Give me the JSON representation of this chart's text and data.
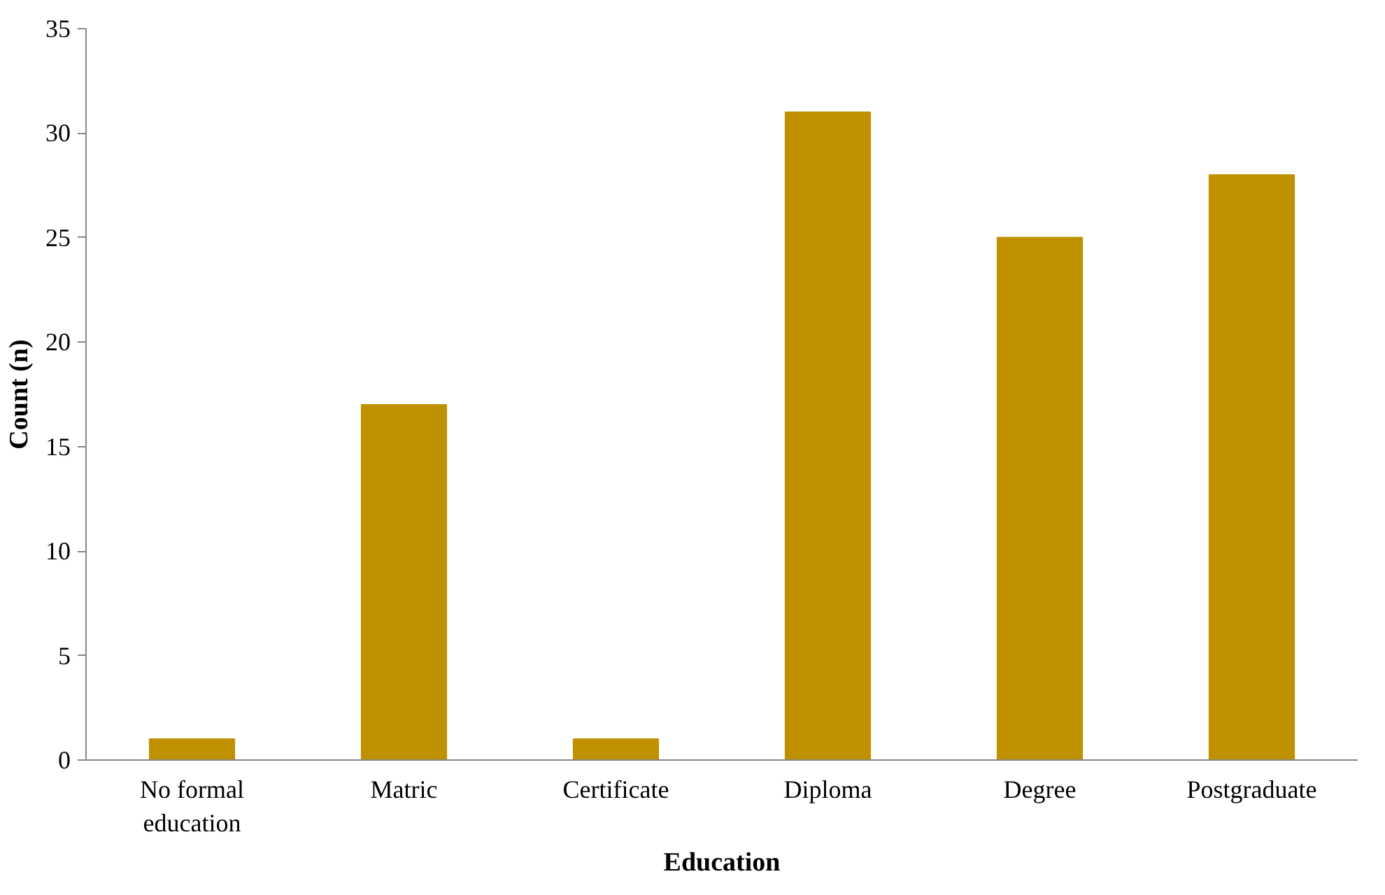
{
  "chart_data": {
    "type": "bar",
    "xlabel": "Education",
    "ylabel": "Count (n)",
    "categories": [
      "No formal education",
      "Matric",
      "Certificate",
      "Diploma",
      "Degree",
      "Postgraduate"
    ],
    "values": [
      1,
      17,
      1,
      31,
      25,
      28
    ],
    "color": "#bf9000",
    "ylim": [
      0,
      35
    ],
    "yticks": [
      0,
      5,
      10,
      15,
      20,
      25,
      30,
      35
    ],
    "grid": false
  }
}
